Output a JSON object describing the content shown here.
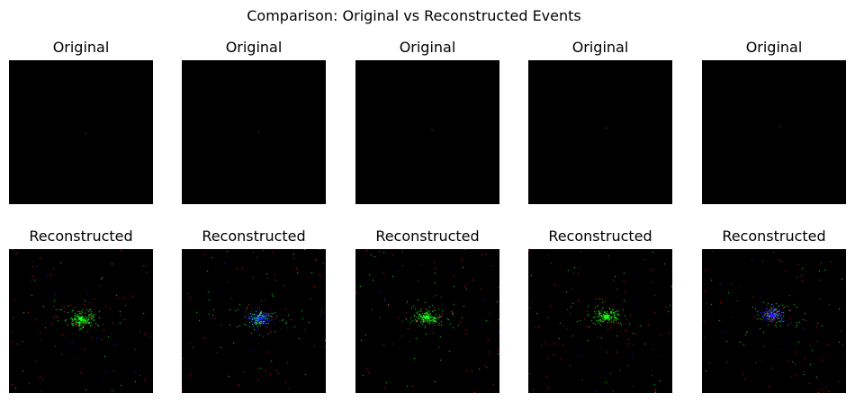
{
  "figure": {
    "title": "Comparison: Original vs Reconstructed Events"
  },
  "rows": [
    {
      "kind": "original",
      "panels": [
        {
          "title": "Original",
          "dim_dot_color": "#0a160a"
        },
        {
          "title": "Original",
          "dim_dot_color": "#160a0a"
        },
        {
          "title": "Original",
          "dim_dot_color": "#0c140c"
        },
        {
          "title": "Original",
          "dim_dot_color": "#0a140a"
        },
        {
          "title": "Original",
          "dim_dot_color": "#100c10"
        }
      ]
    },
    {
      "kind": "reconstructed",
      "panels": [
        {
          "title": "Reconstructed",
          "cluster_core": "green",
          "cluster_extra": []
        },
        {
          "title": "Reconstructed",
          "cluster_core": "blue",
          "cluster_extra": [
            "cyan",
            "green"
          ]
        },
        {
          "title": "Reconstructed",
          "cluster_core": "green",
          "cluster_extra": []
        },
        {
          "title": "Reconstructed",
          "cluster_core": "green",
          "cluster_extra": []
        },
        {
          "title": "Reconstructed",
          "cluster_core": "blue",
          "cluster_extra": [
            "green",
            "red"
          ]
        }
      ]
    }
  ],
  "colors": {
    "background": "#000000",
    "red_event": "#ff1a1a",
    "green_event": "#1aff1a",
    "blue_event": "#2222ff",
    "cyan_event": "#22ffff"
  }
}
